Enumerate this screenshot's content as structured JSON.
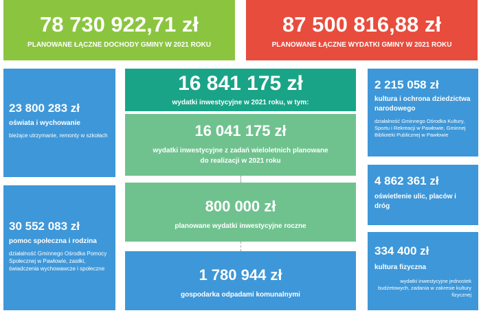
{
  "top": {
    "income": {
      "amount": "78 730 922,71 zł",
      "label": "PLANOWANE ŁĄCZNE DOCHODY GMINY W 2021 ROKU",
      "color": "#8bc540"
    },
    "expenses": {
      "amount": "87 500 816,88 zł",
      "label": "PLANOWANE ŁĄCZNE WYDATKI GMINY W 2021 ROKU",
      "color": "#e84c3d"
    }
  },
  "left": [
    {
      "amount": "23 800 283 zł",
      "label": "oświata i wychowanie",
      "desc": "bieżące utrzymanie, remonty w szkołach"
    },
    {
      "amount": "30 552 083 zł",
      "label": "pomoc społeczna i rodzina",
      "desc": "działalność Gminnego Ośrodka Pomocy Społecznej w Pawłowie, zasiłki, świadczenia wychowawcze i społeczne"
    }
  ],
  "center": {
    "invest": {
      "amount": "16 841 175 zł",
      "label": "wydatki inwestycyjne w 2021 roku, w tym:"
    },
    "multiyear": {
      "amount": "16 041 175 zł",
      "label": "wydatki inwestycyjne z zadań wieloletnich planowane do realizacji w 2021 roku"
    },
    "annual": {
      "amount": "800 000 zł",
      "label": "planowane wydatki inwestycyjne roczne"
    },
    "waste": {
      "amount": "1 780 944 zł",
      "label": "gospodarka odpadami komunalnymi"
    }
  },
  "right": [
    {
      "amount": "2 215 058 zł",
      "label": "kultura i ochrona dziedzictwa narodowego",
      "desc": "działalność Gminnego Ośrodka Kultury, Sportu i Rekreacji w Pawłowie, Gminnej Biblioteki Publicznej w Pawłowie"
    },
    {
      "amount": "4 862 361 zł",
      "label": "oświetlenie ulic, placów i dróg",
      "desc": ""
    },
    {
      "amount": "334 400 zł",
      "label": "kultura fizyczna",
      "desc": "wydatki inwestycyjne jednostek budżetowych, zadania w zakresie kultury fizycznej"
    }
  ]
}
